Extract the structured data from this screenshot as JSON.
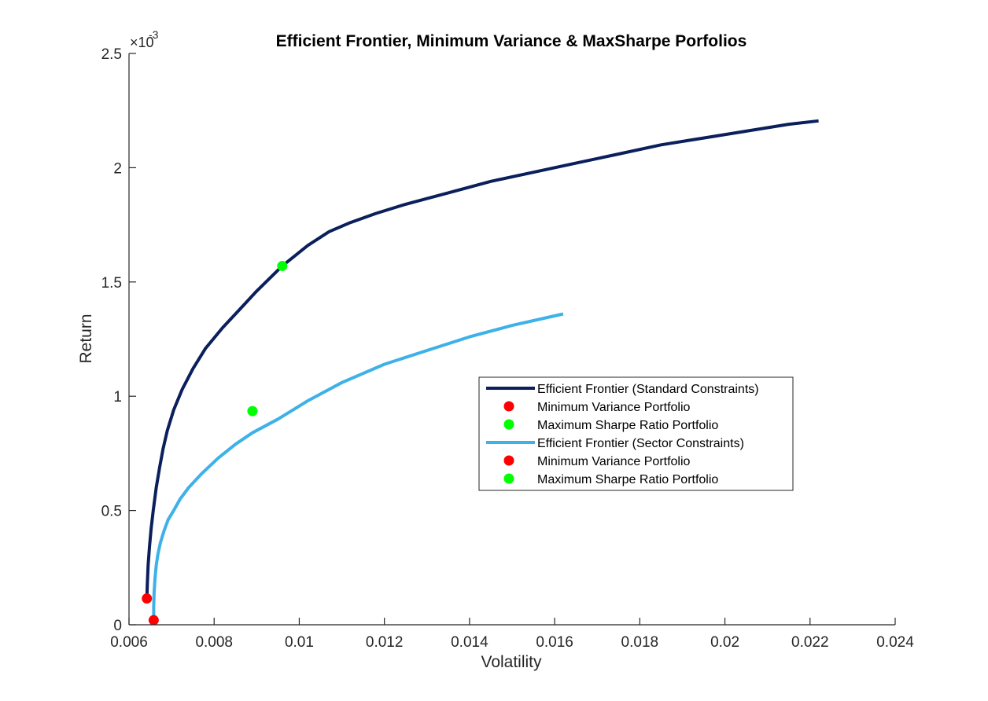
{
  "chart_data": {
    "type": "line",
    "title": "Efficient Frontier, Minimum Variance & MaxSharpe Porfolios",
    "xlabel": "Volatility",
    "ylabel": "Return",
    "y_exponent_base": "×10",
    "y_exponent_power": "-3",
    "xlim": [
      0.006,
      0.024
    ],
    "ylim": [
      0,
      0.0025
    ],
    "xticks": [
      0.006,
      0.008,
      0.01,
      0.012,
      0.014,
      0.016,
      0.018,
      0.02,
      0.022,
      0.024
    ],
    "xtick_labels": [
      "0.006",
      "0.008",
      "0.01",
      "0.012",
      "0.014",
      "0.016",
      "0.018",
      "0.02",
      "0.022",
      "0.024"
    ],
    "yticks": [
      0,
      0.0005,
      0.001,
      0.0015,
      0.002,
      0.0025
    ],
    "ytick_labels": [
      "0",
      "0.5",
      "1",
      "1.5",
      "2",
      "2.5"
    ],
    "grid": false,
    "legend_position": "center-right",
    "series": [
      {
        "name": "Efficient Frontier (Standard Constraints)",
        "kind": "line",
        "color": "#0a1f5c",
        "x": [
          0.00642,
          0.00643,
          0.00645,
          0.00648,
          0.00652,
          0.00657,
          0.00664,
          0.00672,
          0.0068,
          0.0069,
          0.00705,
          0.00725,
          0.0075,
          0.0078,
          0.0082,
          0.0086,
          0.009,
          0.0096,
          0.0102,
          0.0107,
          0.0112,
          0.0118,
          0.0125,
          0.0135,
          0.0145,
          0.0155,
          0.0165,
          0.0175,
          0.0185,
          0.0195,
          0.0205,
          0.0215,
          0.0222
        ],
        "y": [
          0.000115,
          0.00018,
          0.00026,
          0.00034,
          0.00042,
          0.0005,
          0.0006,
          0.00069,
          0.00077,
          0.00085,
          0.00094,
          0.00103,
          0.00112,
          0.00121,
          0.0013,
          0.00138,
          0.00146,
          0.00157,
          0.00166,
          0.00172,
          0.00176,
          0.0018,
          0.00184,
          0.00189,
          0.00194,
          0.00198,
          0.00202,
          0.00206,
          0.0021,
          0.00213,
          0.00216,
          0.00219,
          0.002205
        ]
      },
      {
        "name": "Minimum Variance Portfolio",
        "kind": "marker",
        "color": "#ff0000",
        "x": [
          0.00642
        ],
        "y": [
          0.000115
        ]
      },
      {
        "name": "Maximum Sharpe Ratio Portfolio",
        "kind": "marker",
        "color": "#00ff00",
        "x": [
          0.0096
        ],
        "y": [
          0.00157
        ]
      },
      {
        "name": "Efficient Frontier (Sector Constraints)",
        "kind": "line",
        "color": "#3db1e8",
        "x": [
          0.00658,
          0.00658,
          0.00659,
          0.00661,
          0.00664,
          0.00668,
          0.00674,
          0.00682,
          0.00692,
          0.00705,
          0.0072,
          0.0074,
          0.0077,
          0.0081,
          0.0085,
          0.0089,
          0.0095,
          0.0102,
          0.011,
          0.012,
          0.013,
          0.014,
          0.015,
          0.0162
        ],
        "y": [
          2e-05,
          8e-05,
          0.00014,
          0.0002,
          0.00026,
          0.00031,
          0.00036,
          0.00041,
          0.00046,
          0.0005,
          0.00055,
          0.0006,
          0.00066,
          0.00073,
          0.00079,
          0.00084,
          0.0009,
          0.00098,
          0.00106,
          0.00114,
          0.0012,
          0.00126,
          0.00131,
          0.00136
        ]
      },
      {
        "name": "Minimum Variance Portfolio",
        "kind": "marker",
        "color": "#ff0000",
        "x": [
          0.00658
        ],
        "y": [
          2e-05
        ]
      },
      {
        "name": "Maximum Sharpe Ratio Portfolio",
        "kind": "marker",
        "color": "#00ff00",
        "x": [
          0.0089
        ],
        "y": [
          0.000935
        ]
      }
    ]
  }
}
